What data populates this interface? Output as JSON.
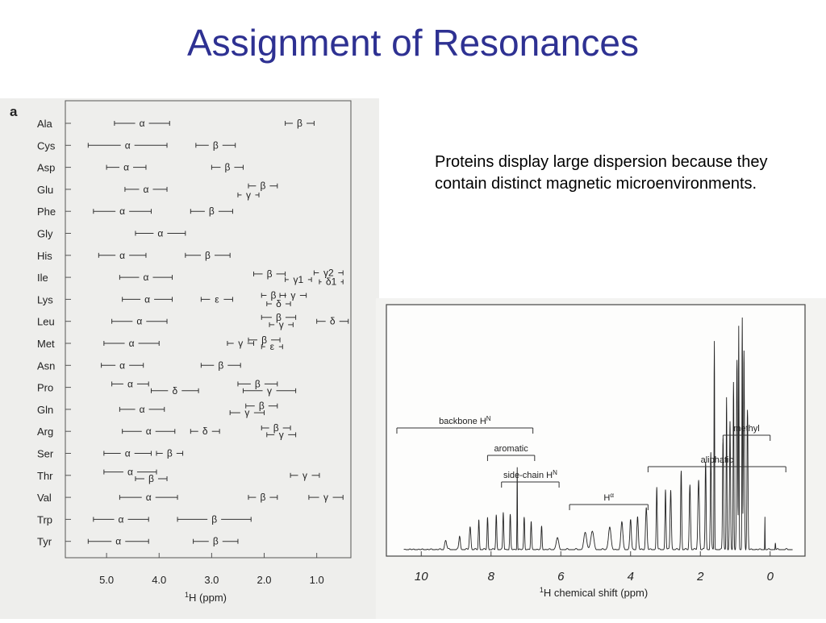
{
  "slide": {
    "title": "Assignment of Resonances",
    "note": "Proteins display large dispersion because they contain distinct magnetic microenvironments."
  },
  "chart_data": [
    {
      "type": "range",
      "panel_label": "a",
      "xlabel_sup": "1",
      "xlabel_rest": "H (ppm)",
      "xlim": [
        5.8,
        0.35
      ],
      "x_ticks": [
        "5.0",
        "4.0",
        "3.0",
        "2.0",
        "1.0"
      ],
      "x_tick_values": [
        5.0,
        4.0,
        3.0,
        2.0,
        1.0
      ],
      "rows": [
        {
          "residue": "Ala",
          "ranges": [
            {
              "label": "α",
              "from": 4.85,
              "to": 3.8,
              "level": 0
            },
            {
              "label": "β",
              "from": 1.6,
              "to": 1.05,
              "level": 0
            }
          ]
        },
        {
          "residue": "Cys",
          "ranges": [
            {
              "label": "α",
              "from": 5.35,
              "to": 3.85,
              "level": 0
            },
            {
              "label": "β",
              "from": 3.3,
              "to": 2.55,
              "level": 0
            }
          ]
        },
        {
          "residue": "Asp",
          "ranges": [
            {
              "label": "α",
              "from": 5.0,
              "to": 4.25,
              "level": 0
            },
            {
              "label": "β",
              "from": 3.0,
              "to": 2.4,
              "level": 0
            }
          ]
        },
        {
          "residue": "Glu",
          "ranges": [
            {
              "label": "α",
              "from": 4.65,
              "to": 3.85,
              "level": 0
            },
            {
              "label": "γ",
              "from": 2.5,
              "to": 2.1,
              "level": 0.5
            },
            {
              "label": "β",
              "from": 2.3,
              "to": 1.75,
              "level": -0.3
            }
          ]
        },
        {
          "residue": "Phe",
          "ranges": [
            {
              "label": "α",
              "from": 5.25,
              "to": 4.15,
              "level": 0
            },
            {
              "label": "β",
              "from": 3.4,
              "to": 2.6,
              "level": 0
            }
          ]
        },
        {
          "residue": "Gly",
          "ranges": [
            {
              "label": "α",
              "from": 4.45,
              "to": 3.5,
              "level": 0
            }
          ]
        },
        {
          "residue": "His",
          "ranges": [
            {
              "label": "α",
              "from": 5.15,
              "to": 4.25,
              "level": 0
            },
            {
              "label": "β",
              "from": 3.5,
              "to": 2.65,
              "level": 0
            }
          ]
        },
        {
          "residue": "Ile",
          "ranges": [
            {
              "label": "α",
              "from": 4.75,
              "to": 3.75,
              "level": 0
            },
            {
              "label": "β",
              "from": 2.2,
              "to": 1.6,
              "level": -0.3
            },
            {
              "label": "γ1",
              "from": 1.6,
              "to": 1.1,
              "level": 0.2
            },
            {
              "label": "γ2",
              "from": 1.05,
              "to": 0.5,
              "level": -0.4
            },
            {
              "label": "δ1",
              "from": 0.95,
              "to": 0.5,
              "level": 0.4
            }
          ]
        },
        {
          "residue": "Lys",
          "ranges": [
            {
              "label": "α",
              "from": 4.7,
              "to": 3.75,
              "level": 0
            },
            {
              "label": "ε",
              "from": 3.2,
              "to": 2.6,
              "level": 0
            },
            {
              "label": "β",
              "from": 2.05,
              "to": 1.6,
              "level": -0.35
            },
            {
              "label": "γ",
              "from": 1.7,
              "to": 1.2,
              "level": -0.35
            },
            {
              "label": "δ",
              "from": 1.95,
              "to": 1.5,
              "level": 0.4
            }
          ]
        },
        {
          "residue": "Leu",
          "ranges": [
            {
              "label": "α",
              "from": 4.9,
              "to": 3.85,
              "level": 0
            },
            {
              "label": "β",
              "from": 2.05,
              "to": 1.4,
              "level": -0.35
            },
            {
              "label": "γ",
              "from": 1.9,
              "to": 1.45,
              "level": 0.3
            },
            {
              "label": "δ",
              "from": 1.0,
              "to": 0.4,
              "level": 0
            }
          ]
        },
        {
          "residue": "Met",
          "ranges": [
            {
              "label": "α",
              "from": 5.05,
              "to": 4.0,
              "level": 0
            },
            {
              "label": "γ",
              "from": 2.7,
              "to": 2.2,
              "level": 0
            },
            {
              "label": "β",
              "from": 2.3,
              "to": 1.7,
              "level": -0.3
            },
            {
              "label": "ε",
              "from": 2.05,
              "to": 1.65,
              "level": 0.3
            }
          ]
        },
        {
          "residue": "Asn",
          "ranges": [
            {
              "label": "α",
              "from": 5.1,
              "to": 4.3,
              "level": 0
            },
            {
              "label": "β",
              "from": 3.2,
              "to": 2.45,
              "level": 0
            }
          ]
        },
        {
          "residue": "Pro",
          "ranges": [
            {
              "label": "α",
              "from": 4.9,
              "to": 4.2,
              "level": -0.3
            },
            {
              "label": "δ",
              "from": 4.15,
              "to": 3.25,
              "level": 0.3
            },
            {
              "label": "β",
              "from": 2.5,
              "to": 1.75,
              "level": -0.3
            },
            {
              "label": "γ",
              "from": 2.4,
              "to": 1.4,
              "level": 0.3
            }
          ]
        },
        {
          "residue": "Gln",
          "ranges": [
            {
              "label": "α",
              "from": 4.75,
              "to": 3.9,
              "level": 0
            },
            {
              "label": "β",
              "from": 2.35,
              "to": 1.75,
              "level": -0.3
            },
            {
              "label": "γ",
              "from": 2.65,
              "to": 2.0,
              "level": 0.3
            }
          ]
        },
        {
          "residue": "Arg",
          "ranges": [
            {
              "label": "α",
              "from": 4.7,
              "to": 3.7,
              "level": 0
            },
            {
              "label": "δ",
              "from": 3.4,
              "to": 2.85,
              "level": 0
            },
            {
              "label": "β",
              "from": 2.05,
              "to": 1.5,
              "level": -0.3
            },
            {
              "label": "γ",
              "from": 1.95,
              "to": 1.4,
              "level": 0.3
            }
          ]
        },
        {
          "residue": "Ser",
          "ranges": [
            {
              "label": "α",
              "from": 5.05,
              "to": 4.15,
              "level": 0
            },
            {
              "label": "β",
              "from": 4.05,
              "to": 3.55,
              "level": 0
            }
          ]
        },
        {
          "residue": "Thr",
          "ranges": [
            {
              "label": "α",
              "from": 5.05,
              "to": 4.05,
              "level": -0.3
            },
            {
              "label": "β",
              "from": 4.45,
              "to": 3.85,
              "level": 0.3
            },
            {
              "label": "γ",
              "from": 1.5,
              "to": 0.95,
              "level": 0
            }
          ]
        },
        {
          "residue": "Val",
          "ranges": [
            {
              "label": "α",
              "from": 4.75,
              "to": 3.65,
              "level": 0
            },
            {
              "label": "β",
              "from": 2.3,
              "to": 1.75,
              "level": 0
            },
            {
              "label": "γ",
              "from": 1.15,
              "to": 0.5,
              "level": 0
            }
          ]
        },
        {
          "residue": "Trp",
          "ranges": [
            {
              "label": "α",
              "from": 5.25,
              "to": 4.2,
              "level": 0
            },
            {
              "label": "β",
              "from": 3.65,
              "to": 2.25,
              "level": 0
            }
          ]
        },
        {
          "residue": "Tyr",
          "ranges": [
            {
              "label": "α",
              "from": 5.35,
              "to": 4.2,
              "level": 0
            },
            {
              "label": "β",
              "from": 3.35,
              "to": 2.5,
              "level": 0
            }
          ]
        }
      ]
    },
    {
      "type": "line",
      "xlabel_sup": "1",
      "xlabel_rest": "H chemical shift (ppm)",
      "xlim": [
        11.0,
        -1.0
      ],
      "x_ticks": [
        "10",
        "8",
        "6",
        "4",
        "2",
        "0"
      ],
      "x_tick_values": [
        10,
        8,
        6,
        4,
        2,
        0
      ],
      "peaks": [
        {
          "x": 0.9,
          "y": 0.96,
          "w": 0.012
        },
        {
          "x": 0.8,
          "y": 1.0,
          "w": 0.012
        },
        {
          "x": 0.95,
          "y": 0.82,
          "w": 0.02
        },
        {
          "x": 0.75,
          "y": 0.86,
          "w": 0.02
        },
        {
          "x": 0.65,
          "y": 0.6,
          "w": 0.02
        },
        {
          "x": 1.05,
          "y": 0.72,
          "w": 0.015
        },
        {
          "x": 1.15,
          "y": 0.55,
          "w": 0.02
        },
        {
          "x": 1.25,
          "y": 0.66,
          "w": 0.015
        },
        {
          "x": 1.35,
          "y": 0.48,
          "w": 0.02
        },
        {
          "x": 1.6,
          "y": 0.9,
          "w": 0.012
        },
        {
          "x": 1.7,
          "y": 0.42,
          "w": 0.02
        },
        {
          "x": 1.85,
          "y": 0.38,
          "w": 0.02
        },
        {
          "x": 2.05,
          "y": 0.3,
          "w": 0.03
        },
        {
          "x": 2.3,
          "y": 0.28,
          "w": 0.025
        },
        {
          "x": 2.55,
          "y": 0.34,
          "w": 0.02
        },
        {
          "x": 2.85,
          "y": 0.26,
          "w": 0.025
        },
        {
          "x": 3.0,
          "y": 0.26,
          "w": 0.02
        },
        {
          "x": 3.25,
          "y": 0.27,
          "w": 0.02
        },
        {
          "x": 3.55,
          "y": 0.18,
          "w": 0.03
        },
        {
          "x": 3.8,
          "y": 0.14,
          "w": 0.03
        },
        {
          "x": 4.0,
          "y": 0.13,
          "w": 0.03
        },
        {
          "x": 4.25,
          "y": 0.12,
          "w": 0.04
        },
        {
          "x": 4.6,
          "y": 0.1,
          "w": 0.05
        },
        {
          "x": 5.1,
          "y": 0.08,
          "w": 0.06
        },
        {
          "x": 5.3,
          "y": 0.07,
          "w": 0.06
        },
        {
          "x": 6.1,
          "y": 0.05,
          "w": 0.05
        },
        {
          "x": 6.55,
          "y": 0.1,
          "w": 0.02
        },
        {
          "x": 6.85,
          "y": 0.12,
          "w": 0.02
        },
        {
          "x": 7.05,
          "y": 0.14,
          "w": 0.02
        },
        {
          "x": 7.25,
          "y": 0.36,
          "w": 0.01
        },
        {
          "x": 7.45,
          "y": 0.15,
          "w": 0.02
        },
        {
          "x": 7.65,
          "y": 0.16,
          "w": 0.02
        },
        {
          "x": 7.85,
          "y": 0.15,
          "w": 0.02
        },
        {
          "x": 8.1,
          "y": 0.14,
          "w": 0.02
        },
        {
          "x": 8.35,
          "y": 0.13,
          "w": 0.02
        },
        {
          "x": 8.6,
          "y": 0.1,
          "w": 0.03
        },
        {
          "x": 8.9,
          "y": 0.06,
          "w": 0.03
        },
        {
          "x": 9.3,
          "y": 0.04,
          "w": 0.04
        },
        {
          "x": 0.15,
          "y": 0.14,
          "w": 0.006
        },
        {
          "x": -0.15,
          "y": 0.03,
          "w": 0.01
        }
      ],
      "annotations": [
        {
          "label": "backbone H",
          "sup": "N",
          "from": 10.7,
          "to": 6.8
        },
        {
          "label": "aromatic",
          "sup": "",
          "from": 8.1,
          "to": 6.75
        },
        {
          "label": "side-chain H",
          "sup": "N",
          "from": 7.7,
          "to": 6.05
        },
        {
          "label": "H",
          "sup": "α",
          "from": 5.75,
          "to": 3.5
        },
        {
          "label": "aliphatic",
          "sup": "",
          "from": 3.5,
          "to": -0.45
        },
        {
          "label": "methyl",
          "sup": "",
          "from": 1.35,
          "to": 0.0
        }
      ]
    }
  ]
}
